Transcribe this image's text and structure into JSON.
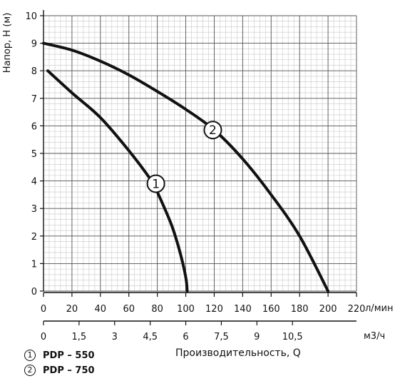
{
  "chart_data": {
    "type": "line",
    "title": "",
    "ylabel": "Напор, H (м)",
    "xlabel": "Производительность, Q",
    "x_unit_top": "л/мин",
    "x_unit_bottom": "м3/ч",
    "ylim": [
      0,
      10
    ],
    "xlim": [
      0,
      220
    ],
    "grid": true,
    "y_ticks": [
      "0",
      "1",
      "2",
      "3",
      "4",
      "5",
      "6",
      "7",
      "8",
      "9",
      "10"
    ],
    "x_ticks_lmin": [
      "0",
      "20",
      "40",
      "60",
      "80",
      "100",
      "120",
      "140",
      "160",
      "180",
      "200",
      "220"
    ],
    "x_ticks_m3h": [
      "0",
      "1,5",
      "3",
      "4,5",
      "6",
      "7,5",
      "9",
      "10,5"
    ],
    "series": [
      {
        "name": "PDP – 550",
        "marker": "1",
        "color": "#111111",
        "x": [
          3,
          20,
          40,
          60,
          76,
          80,
          90,
          96,
          100,
          101
        ],
        "y": [
          8.0,
          7.2,
          6.3,
          5.1,
          4.0,
          3.6,
          2.4,
          1.4,
          0.5,
          0.0
        ],
        "label_at": [
          79,
          3.9
        ]
      },
      {
        "name": "PDP – 750",
        "marker": "2",
        "color": "#111111",
        "x": [
          0,
          20,
          40,
          60,
          80,
          100,
          120,
          140,
          160,
          180,
          200
        ],
        "y": [
          9.0,
          8.75,
          8.35,
          7.85,
          7.25,
          6.6,
          5.85,
          4.8,
          3.5,
          2.0,
          0.0
        ],
        "label_at": [
          119,
          5.85
        ]
      }
    ]
  },
  "legend": [
    {
      "marker": "1",
      "label": "PDP – 550"
    },
    {
      "marker": "2",
      "label": "PDP – 750"
    }
  ]
}
